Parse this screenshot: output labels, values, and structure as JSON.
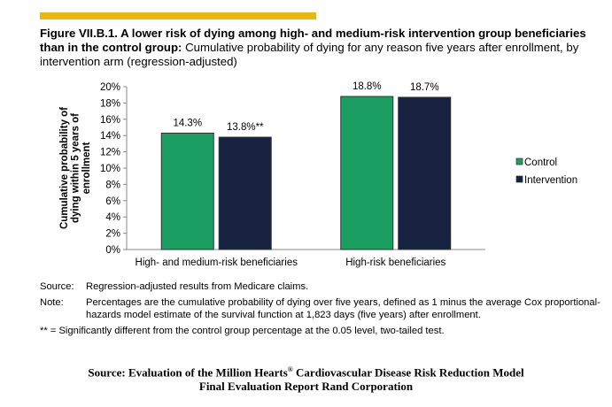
{
  "header": {
    "accent_color": "#E8B90C",
    "title_bold": "Figure VII.B.1. A lower risk of dying among high- and medium-risk intervention group beneficiaries than in the control group:",
    "title_rest": " Cumulative probability of dying for any reason five years after enrollment, by intervention arm (regression-adjusted)"
  },
  "chart_data": {
    "type": "bar",
    "title": "",
    "xlabel": "",
    "ylabel": "Cumulative probability of dying within 5 years of enrollment",
    "ylim": [
      0,
      20
    ],
    "yticks": [
      0,
      2,
      4,
      6,
      8,
      10,
      12,
      14,
      16,
      18,
      20
    ],
    "ytick_labels": [
      "0%",
      "2%",
      "4%",
      "6%",
      "8%",
      "10%",
      "12%",
      "14%",
      "16%",
      "18%",
      "20%"
    ],
    "categories": [
      "High- and medium-risk beneficiaries",
      "High-risk beneficiaries"
    ],
    "series": [
      {
        "name": "Control",
        "color": "#1A9E62",
        "values": [
          14.3,
          18.8
        ],
        "labels": [
          "14.3%",
          "18.8%"
        ]
      },
      {
        "name": "Intervention",
        "color": "#172140",
        "values": [
          13.8,
          18.7
        ],
        "labels": [
          "13.8%**",
          "18.7%"
        ]
      }
    ],
    "legend_position": "right",
    "grid": false
  },
  "notes": {
    "source_label": "Source:",
    "source_text": "Regression-adjusted results from Medicare claims.",
    "note_label": "Note:",
    "note_text": "Percentages are the cumulative probability of dying over five years, defined as 1 minus the average Cox proportional-hazards model estimate of the survival function at 1,823 days (five years) after enrollment.",
    "significance": "** = Significantly different from the control group percentage at the 0.05 level, two-tailed test."
  },
  "footer": {
    "line1_a": "Source: Evaluation of the Million Hearts",
    "line1_sup": "®",
    "line1_b": " Cardiovascular Disease  Risk Reduction Model",
    "line2": "Final Evaluation Report Rand Corporation"
  }
}
